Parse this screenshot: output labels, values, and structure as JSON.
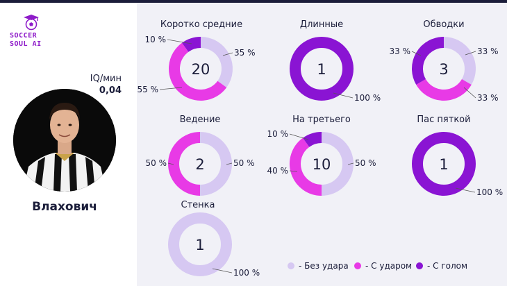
{
  "brand": {
    "line1": "SOCCER",
    "line2": "SOUL AI",
    "icon": "ball-mortarboard-icon"
  },
  "player": {
    "name": "Влахович",
    "iq_label": "IQ/мин",
    "iq_value": "0,04",
    "photo": "player-photo"
  },
  "colors": {
    "no_shot": "#d6c8f2",
    "with_shot": "#e83ae6",
    "with_goal": "#8a14d3",
    "accent": "#8e1bc9"
  },
  "legend": [
    {
      "label": "- Без удара",
      "color": "#d6c8f2"
    },
    {
      "label": "- С ударом",
      "color": "#e83ae6"
    },
    {
      "label": "- С голом",
      "color": "#8a14d3"
    }
  ],
  "chart_data": [
    {
      "type": "pie",
      "title": "Коротко средние",
      "total": "20",
      "categories": [
        "Без удара",
        "С ударом",
        "С голом"
      ],
      "values": [
        35,
        55,
        10
      ],
      "labels": [
        "35 %",
        "55 %",
        "10 %"
      ]
    },
    {
      "type": "pie",
      "title": "Длинные",
      "total": "1",
      "categories": [
        "С голом"
      ],
      "values": [
        100
      ],
      "labels": [
        "100 %"
      ]
    },
    {
      "type": "pie",
      "title": "Обводки",
      "total": "3",
      "categories": [
        "Без удара",
        "С ударом",
        "С голом"
      ],
      "values": [
        33,
        33,
        33
      ],
      "labels": [
        "33 %",
        "33 %",
        "33 %"
      ]
    },
    {
      "type": "pie",
      "title": "Ведение",
      "total": "2",
      "categories": [
        "Без удара",
        "С ударом"
      ],
      "values": [
        50,
        50
      ],
      "labels": [
        "50 %",
        "50 %"
      ]
    },
    {
      "type": "pie",
      "title": "На третьего",
      "total": "10",
      "categories": [
        "Без удара",
        "С ударом",
        "С голом"
      ],
      "values": [
        50,
        40,
        10
      ],
      "labels": [
        "50 %",
        "40 %",
        "10 %"
      ]
    },
    {
      "type": "pie",
      "title": "Пас пяткой",
      "total": "1",
      "categories": [
        "С голом"
      ],
      "values": [
        100
      ],
      "labels": [
        "100 %"
      ]
    },
    {
      "type": "pie",
      "title": "Стенка",
      "total": "1",
      "categories": [
        "Без удара"
      ],
      "values": [
        100
      ],
      "labels": [
        "100 %"
      ]
    }
  ]
}
